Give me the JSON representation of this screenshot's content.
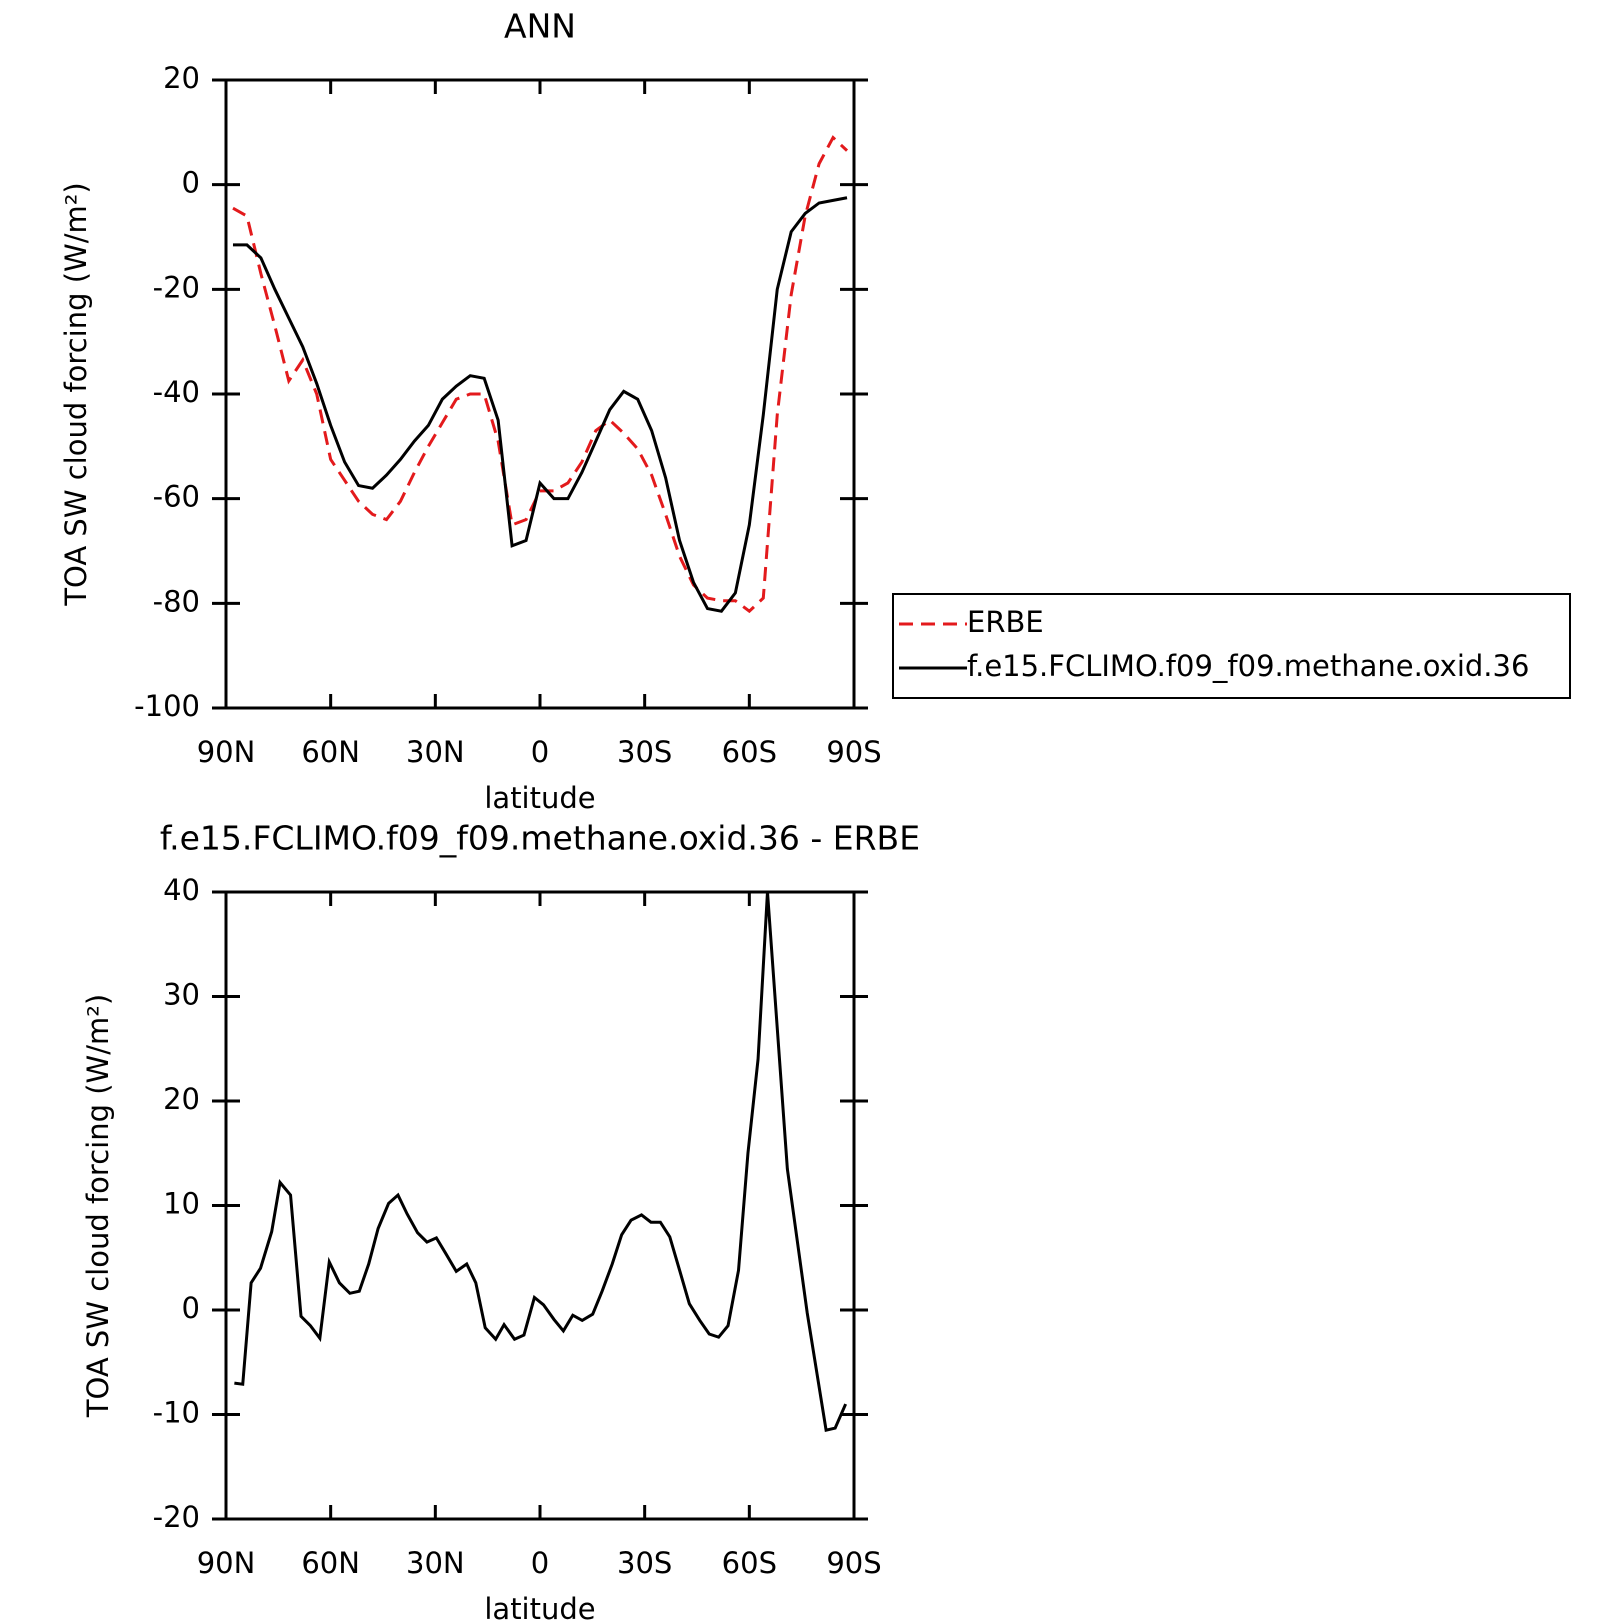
{
  "chart_data": [
    {
      "type": "line",
      "title": "ANN",
      "x_label": "latitude",
      "y_label": "TOA SW cloud forcing (W/m²)",
      "xlim": [
        90,
        -90
      ],
      "xticks": [
        {
          "value": 90,
          "label": "90N"
        },
        {
          "value": 60,
          "label": "60N"
        },
        {
          "value": 30,
          "label": "30N"
        },
        0,
        {
          "value": -30,
          "label": "30S"
        },
        {
          "value": -60,
          "label": "60S"
        },
        {
          "value": -90,
          "label": "90S"
        }
      ],
      "ylim": [
        -100,
        20
      ],
      "yticks": [
        -100,
        -80,
        -60,
        -40,
        -20,
        0,
        20
      ],
      "legend": "right",
      "x": [
        88,
        84,
        80,
        76,
        72,
        68,
        64,
        60,
        56,
        52,
        48,
        44,
        40,
        36,
        32,
        28,
        24,
        20,
        16,
        12,
        8,
        4,
        0,
        -4,
        -8,
        -12,
        -16,
        -20,
        -24,
        -28,
        -32,
        -36,
        -40,
        -44,
        -48,
        -52,
        -56,
        -60,
        -64,
        -68,
        -72,
        -76,
        -80,
        -84,
        -88
      ],
      "series": [
        {
          "name": "ERBE",
          "color": "#e31a1c",
          "dash": true,
          "values": [
            -4.5,
            -6,
            -17,
            -27,
            -37.5,
            -33.5,
            -40,
            -52.5,
            -56.5,
            -60.5,
            -63,
            -64,
            -60.5,
            -55,
            -50,
            -45.5,
            -41,
            -40,
            -40,
            -49,
            -65,
            -64,
            -58.5,
            -58.5,
            -57,
            -53,
            -47,
            -45,
            -47.5,
            -50.5,
            -55.5,
            -63,
            -71,
            -76.5,
            -79,
            -79.5,
            -79.5,
            -81.5,
            -79,
            -44,
            -21,
            -6,
            4,
            9,
            6.5
          ]
        },
        {
          "name": "f.e15.FCLIMO.f09_f09.methane.oxid.36",
          "color": "#000000",
          "dash": false,
          "values": [
            -11.5,
            -11.5,
            -14,
            -20,
            -25.5,
            -31,
            -38,
            -46,
            -53,
            -57.5,
            -58,
            -55.5,
            -52.5,
            -49,
            -46,
            -41,
            -38.5,
            -36.5,
            -37,
            -45,
            -69,
            -68,
            -57,
            -60,
            -60,
            -55,
            -49,
            -43,
            -39.5,
            -41,
            -47,
            -56,
            -68,
            -76,
            -81,
            -81.5,
            -78,
            -65,
            -44,
            -20,
            -9,
            -5.5,
            -3.5,
            -3,
            -2.5
          ]
        }
      ]
    },
    {
      "type": "line",
      "title": "f.e15.FCLIMO.f09_f09.methane.oxid.36 - ERBE",
      "x_label": "latitude",
      "y_label": "TOA SW cloud forcing (W/m²)",
      "xlim": [
        90,
        -90
      ],
      "xticks": [
        {
          "value": 90,
          "label": "90N"
        },
        {
          "value": 60,
          "label": "60N"
        },
        {
          "value": 30,
          "label": "30N"
        },
        0,
        {
          "value": -30,
          "label": "30S"
        },
        {
          "value": -60,
          "label": "60S"
        },
        {
          "value": -90,
          "label": "90S"
        }
      ],
      "ylim": [
        -20,
        40
      ],
      "yticks": [
        -20,
        -10,
        0,
        10,
        20,
        30,
        40
      ],
      "x": [
        87.6,
        85.2,
        82.8,
        80.1,
        76.9,
        74.5,
        71.5,
        68.5,
        65.8,
        63.1,
        60.4,
        57.5,
        54.5,
        51.8,
        49.1,
        46.4,
        43.4,
        40.7,
        38.1,
        35.1,
        32.4,
        29.7,
        27,
        24,
        21,
        18.4,
        15.7,
        12.7,
        10.3,
        7.3,
        4.6,
        1.6,
        -1,
        -4,
        -6.7,
        -9.4,
        -12.1,
        -15.1,
        -17.8,
        -20.7,
        -23.4,
        -26.1,
        -29.1,
        -31.8,
        -34.5,
        -37.2,
        -40.1,
        -42.8,
        -45.8,
        -48.5,
        -51.2,
        -53.9,
        -56.9,
        -59.6,
        -62.5,
        -65.2,
        -70.9,
        -76.6,
        -82,
        -84.6,
        -87.6
      ],
      "series": [
        {
          "color": "#000000",
          "dash": false,
          "values": [
            -7,
            -7.1,
            2.6,
            4,
            7.5,
            12.2,
            11,
            -0.6,
            -1.5,
            -2.7,
            4.6,
            2.6,
            1.6,
            1.8,
            4.4,
            7.8,
            10.2,
            11,
            9.2,
            7.4,
            6.5,
            6.9,
            5.4,
            3.7,
            4.4,
            2.6,
            -1.7,
            -2.8,
            -1.4,
            -2.8,
            -2.4,
            1.2,
            0.5,
            -0.9,
            -2,
            -0.5,
            -1,
            -0.4,
            1.8,
            4.4,
            7.2,
            8.6,
            9.1,
            8.4,
            8.4,
            7,
            3.7,
            0.6,
            -1,
            -2.3,
            -2.6,
            -1.5,
            3.8,
            15,
            24,
            40,
            13.5,
            -0.3,
            -11.5,
            -11.3,
            -9
          ]
        }
      ]
    }
  ]
}
